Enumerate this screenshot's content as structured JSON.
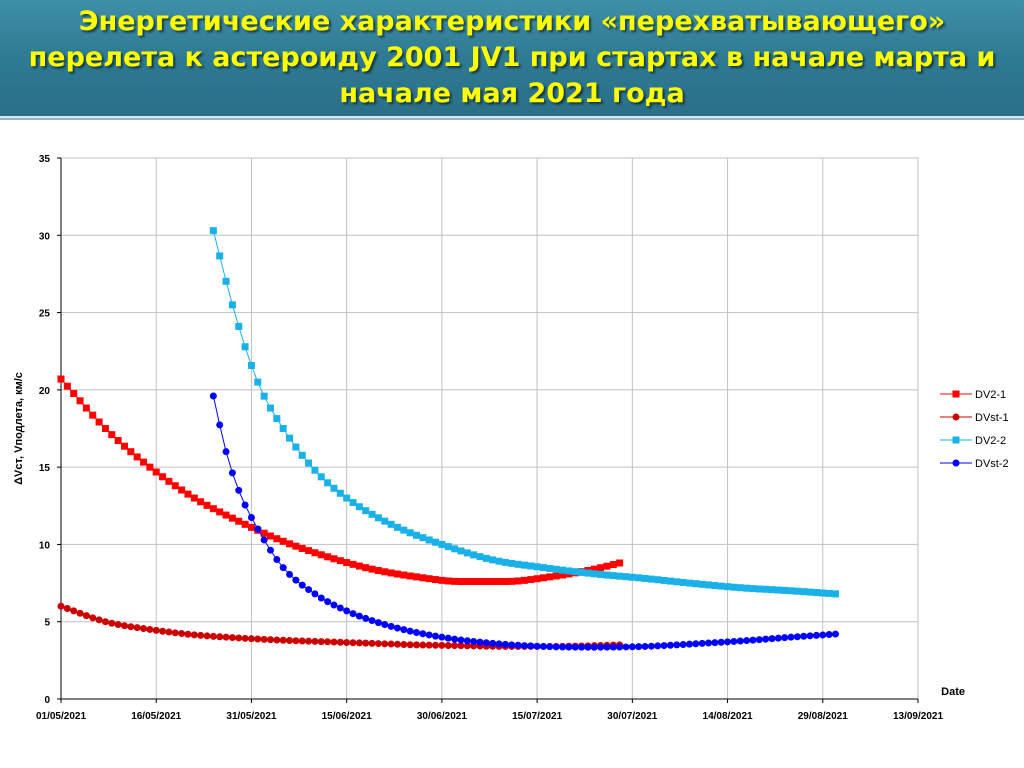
{
  "slide": {
    "title": "Энергетические характеристики «перехватывающего» перелета к астероиду 2001 JV1 при стартах в начале марта и начале мая 2021 года"
  },
  "colors": {
    "title_bar": "#2e7a93",
    "title_text": "#ffff00",
    "DV2-1": "#ff0000",
    "DVst-1": "#cc0000",
    "DV2-2": "#1ab0e8",
    "DVst-2": "#0000ff",
    "grid": "#c0c0c0"
  },
  "chart_data": {
    "type": "line",
    "xlabel": "Date",
    "ylabel": "ΔVст, Vподлета,  км/с",
    "x_type": "date",
    "xlim": [
      "2021-05-01",
      "2021-09-13"
    ],
    "x_ticks": [
      "01/05/2021",
      "16/05/2021",
      "31/05/2021",
      "15/06/2021",
      "30/06/2021",
      "15/07/2021",
      "30/07/2021",
      "14/08/2021",
      "29/08/2021",
      "13/09/2021"
    ],
    "ylim": [
      0,
      35
    ],
    "y_ticks": [
      "0",
      "5",
      "10",
      "15",
      "20",
      "25",
      "30",
      "35"
    ],
    "grid": true,
    "legend_position": "right",
    "series": [
      {
        "name": "DV2-1",
        "marker": "square",
        "x": [
          "2021-05-01",
          "2021-05-08",
          "2021-05-15",
          "2021-05-22",
          "2021-05-29",
          "2021-06-05",
          "2021-06-12",
          "2021-06-19",
          "2021-06-26",
          "2021-07-03",
          "2021-07-10",
          "2021-07-17",
          "2021-07-24",
          "2021-07-28"
        ],
        "y": [
          20.7,
          17.5,
          15.0,
          13.0,
          11.5,
          10.2,
          9.2,
          8.4,
          7.9,
          7.6,
          7.6,
          7.9,
          8.4,
          8.8
        ]
      },
      {
        "name": "DVst-1",
        "marker": "circle",
        "x": [
          "2021-05-01",
          "2021-05-08",
          "2021-05-15",
          "2021-05-22",
          "2021-05-29",
          "2021-06-05",
          "2021-06-12",
          "2021-06-19",
          "2021-06-26",
          "2021-07-03",
          "2021-07-10",
          "2021-07-17",
          "2021-07-24",
          "2021-07-28"
        ],
        "y": [
          6.0,
          5.0,
          4.5,
          4.15,
          3.95,
          3.8,
          3.7,
          3.6,
          3.5,
          3.45,
          3.4,
          3.4,
          3.45,
          3.5
        ]
      },
      {
        "name": "DV2-2",
        "marker": "square",
        "x": [
          "2021-05-25",
          "2021-05-28",
          "2021-06-01",
          "2021-06-05",
          "2021-06-10",
          "2021-06-15",
          "2021-06-22",
          "2021-06-30",
          "2021-07-08",
          "2021-07-16",
          "2021-07-24",
          "2021-08-01",
          "2021-08-08",
          "2021-08-16",
          "2021-08-24",
          "2021-08-31"
        ],
        "y": [
          30.3,
          25.5,
          20.5,
          17.5,
          14.8,
          13.0,
          11.3,
          10.0,
          9.0,
          8.5,
          8.1,
          7.8,
          7.5,
          7.2,
          7.0,
          6.8
        ]
      },
      {
        "name": "DVst-2",
        "marker": "circle",
        "x": [
          "2021-05-25",
          "2021-05-27",
          "2021-05-29",
          "2021-06-01",
          "2021-06-05",
          "2021-06-10",
          "2021-06-15",
          "2021-06-22",
          "2021-06-30",
          "2021-07-08",
          "2021-07-16",
          "2021-07-24",
          "2021-08-01",
          "2021-08-08",
          "2021-08-16",
          "2021-08-24",
          "2021-08-31"
        ],
        "y": [
          19.6,
          16.0,
          13.5,
          11.0,
          8.5,
          6.8,
          5.7,
          4.7,
          4.0,
          3.6,
          3.4,
          3.35,
          3.4,
          3.55,
          3.75,
          4.0,
          4.2
        ]
      }
    ]
  }
}
